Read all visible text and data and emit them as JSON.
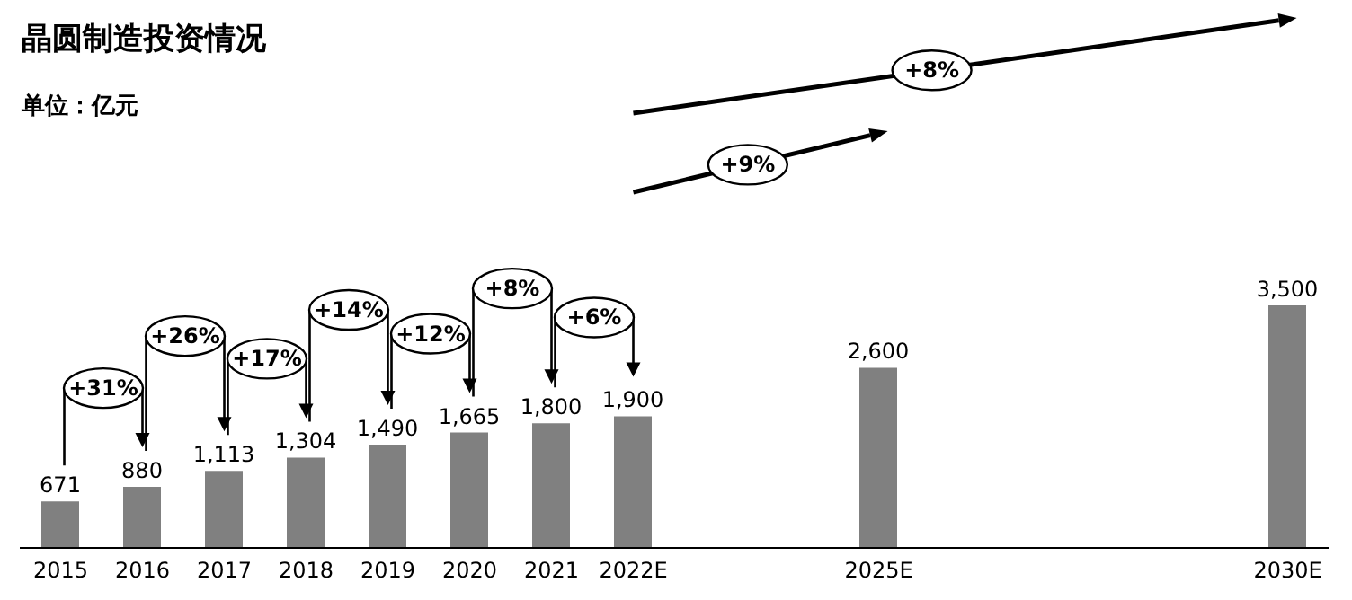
{
  "chart_data": {
    "type": "bar",
    "title": "晶圆制造投资情况",
    "subtitle": "单位：亿元",
    "categories": [
      "2015",
      "2016",
      "2017",
      "2018",
      "2019",
      "2020",
      "2021",
      "2022E",
      null,
      null,
      "2025E",
      null,
      null,
      null,
      null,
      "2030E"
    ],
    "values": [
      671,
      880,
      1113,
      1304,
      1490,
      1665,
      1800,
      1900,
      null,
      null,
      2600,
      null,
      null,
      null,
      null,
      3500
    ],
    "color": "#808080",
    "value_labels": [
      "671",
      "880",
      "1,113",
      "1,304",
      "1,490",
      "1,665",
      "1,800",
      "1,900",
      null,
      null,
      "2,600",
      null,
      null,
      null,
      null,
      "3,500"
    ],
    "annotations": [
      "+31%",
      "+26%",
      "+17%",
      "+14%",
      "+12%",
      "+8%",
      "+6%",
      "+9%",
      "+8%"
    ]
  }
}
